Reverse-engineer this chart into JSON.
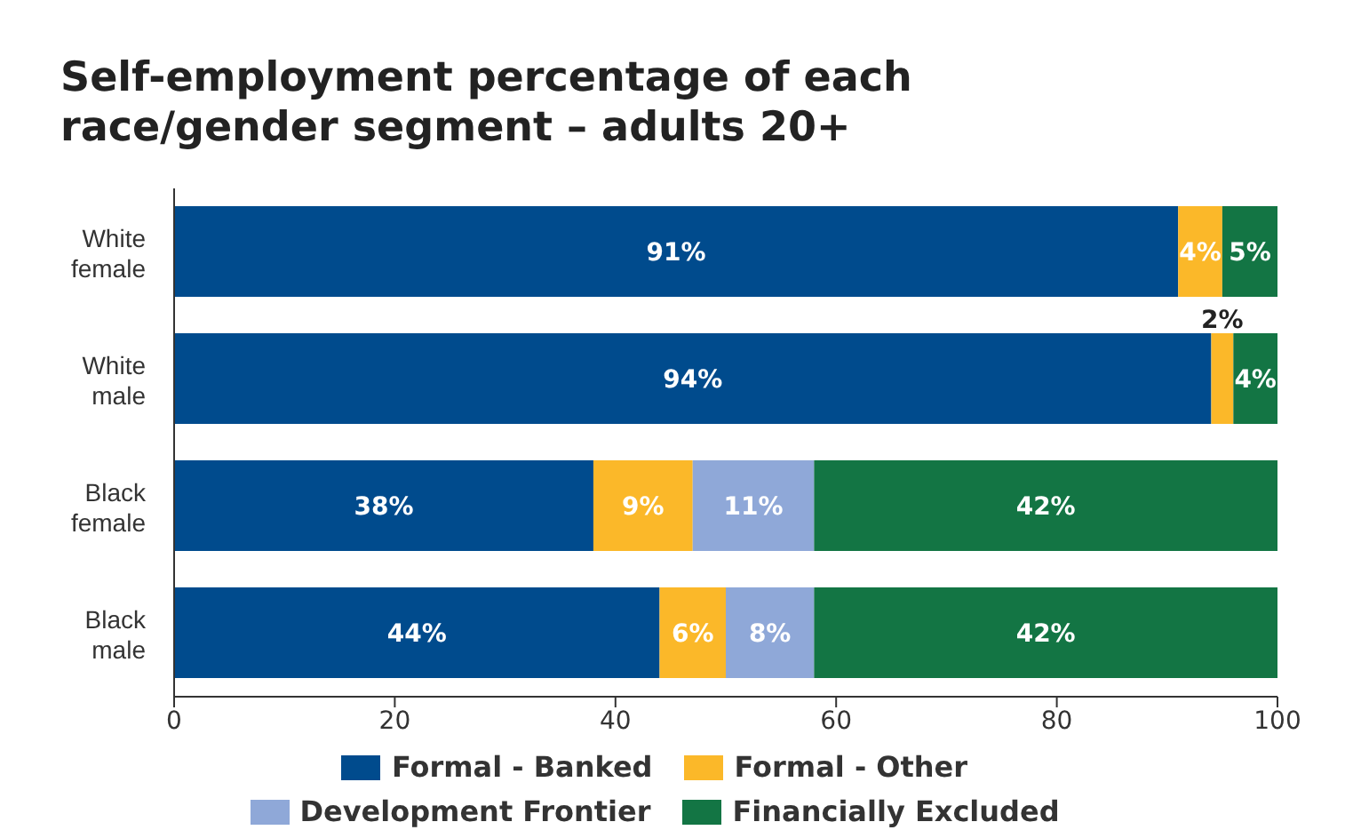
{
  "chart_data": {
    "type": "bar",
    "orientation": "horizontal",
    "stacked": true,
    "title": "Self-employment percentage of each race/gender segment – adults 20+",
    "categories": [
      "White female",
      "White male",
      "Black female",
      "Black male"
    ],
    "series": [
      {
        "name": "Formal - Banked",
        "color": "#004b8d",
        "values": [
          91,
          94,
          38,
          44
        ],
        "value_labels": [
          "91%",
          "94%",
          "38%",
          "44%"
        ]
      },
      {
        "name": "Formal - Other",
        "color": "#fbb829",
        "values": [
          4,
          2,
          9,
          6
        ],
        "value_labels": [
          "4%",
          "2%",
          "9%",
          "6%"
        ]
      },
      {
        "name": "Development Frontier",
        "color": "#8fa8d8",
        "values": [
          null,
          null,
          11,
          8
        ],
        "value_labels": [
          null,
          null,
          "11%",
          "8%"
        ]
      },
      {
        "name": "Financially Excluded",
        "color": "#137544",
        "values": [
          5,
          4,
          42,
          42
        ],
        "value_labels": [
          "5%",
          "4%",
          "42%",
          "42%"
        ]
      }
    ],
    "xlim": [
      0,
      100
    ],
    "xticks": [
      0,
      20,
      40,
      60,
      80,
      100
    ],
    "grid": false,
    "legend": "bottom"
  }
}
